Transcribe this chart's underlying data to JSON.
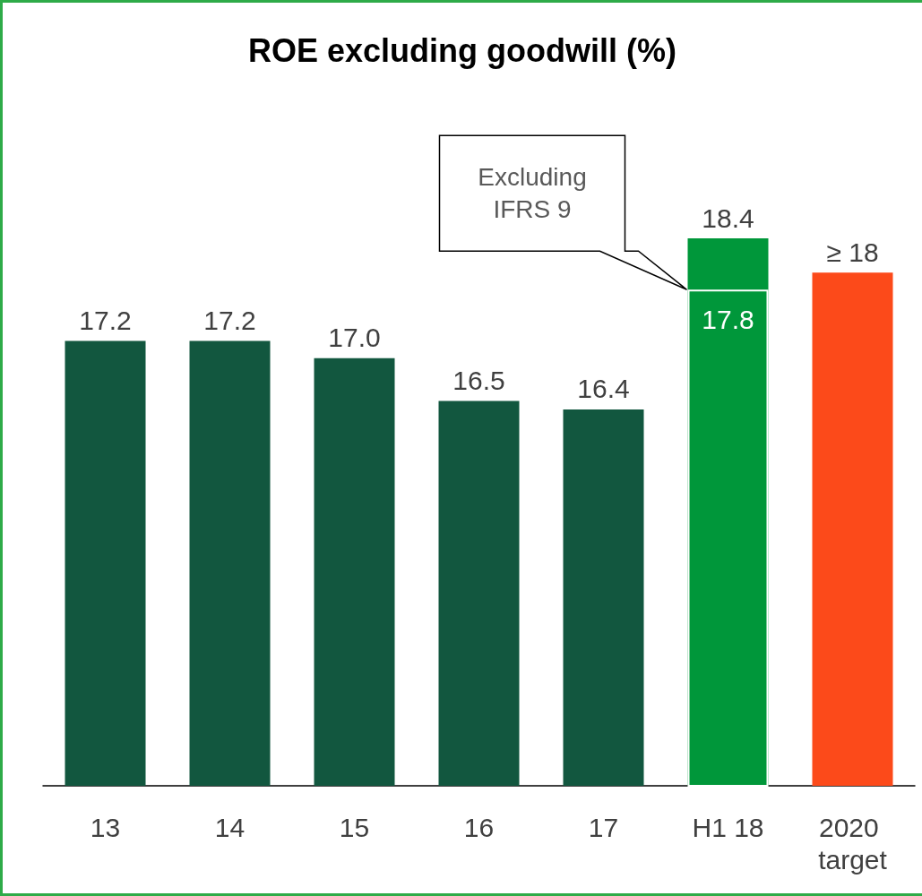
{
  "chart_data": {
    "type": "bar",
    "title": "ROE excluding goodwill (%)",
    "categories": [
      "13",
      "14",
      "15",
      "16",
      "17",
      "H1 18",
      "2020 target"
    ],
    "series": [
      {
        "colors": [
          "#12573f",
          "#12573f",
          "#12573f",
          "#12573f",
          "#12573f",
          "#00973a",
          "#fc4a1a"
        ],
        "values": [
          17.2,
          17.2,
          17.0,
          16.5,
          16.4,
          18.4,
          18
        ],
        "value_labels": [
          "17.2",
          "17.2",
          "17.0",
          "16.5",
          "16.4",
          "18.4",
          "≥ 18"
        ]
      },
      {
        "color": "#00973a",
        "values": [
          null,
          null,
          null,
          null,
          null,
          17.8,
          null
        ],
        "value_labels": [
          null,
          null,
          null,
          null,
          null,
          "17.8",
          null
        ]
      }
    ],
    "ylim": [
      12,
      18.4
    ],
    "tick_labels": "x",
    "grid": false,
    "annotations": [
      "Excluding IFRS 9"
    ]
  }
}
